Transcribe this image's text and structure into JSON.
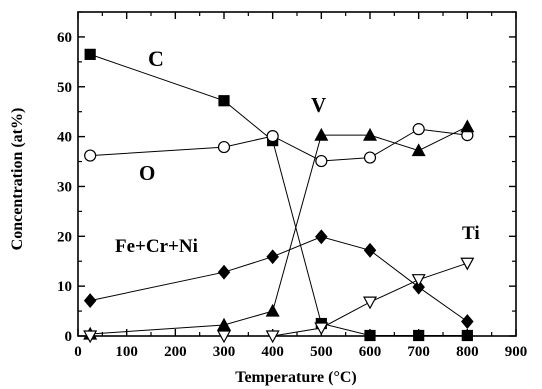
{
  "chart_data": {
    "type": "line",
    "xlabel": "Temperature (°C)",
    "ylabel": "Concentration (at%)",
    "xlim": [
      0,
      900
    ],
    "ylim": [
      0,
      65
    ],
    "xticks": [
      0,
      100,
      200,
      300,
      400,
      500,
      600,
      700,
      800,
      900
    ],
    "yticks": [
      0,
      10,
      20,
      30,
      40,
      50,
      60
    ],
    "grid": false,
    "legend": "none",
    "series": [
      {
        "name": "C",
        "marker": "filled-square",
        "x": [
          25,
          300,
          400,
          500,
          600,
          700,
          800
        ],
        "y": [
          56.5,
          47.2,
          39.2,
          2.5,
          0.1,
          0.1,
          0.1
        ]
      },
      {
        "name": "O",
        "marker": "open-circle",
        "x": [
          25,
          300,
          400,
          500,
          600,
          700,
          800
        ],
        "y": [
          36.2,
          37.9,
          40.1,
          35.1,
          35.8,
          41.5,
          40.3
        ]
      },
      {
        "name": "V",
        "marker": "filled-triangle",
        "x": [
          25,
          300,
          400,
          500,
          600,
          700,
          800
        ],
        "y": [
          0.4,
          2.2,
          5.0,
          40.3,
          40.3,
          37.2,
          42.0
        ]
      },
      {
        "name": "Fe+Cr+Ni",
        "marker": "filled-diamond",
        "x": [
          25,
          300,
          400,
          500,
          600,
          700,
          800
        ],
        "y": [
          7.1,
          12.8,
          15.9,
          19.9,
          17.2,
          9.8,
          2.9
        ]
      },
      {
        "name": "Ti",
        "marker": "open-inverted-triangle",
        "x": [
          25,
          300,
          400,
          500,
          600,
          700,
          800
        ],
        "y": [
          0.0,
          0.0,
          0.0,
          1.6,
          6.8,
          11.3,
          14.6
        ]
      }
    ]
  }
}
